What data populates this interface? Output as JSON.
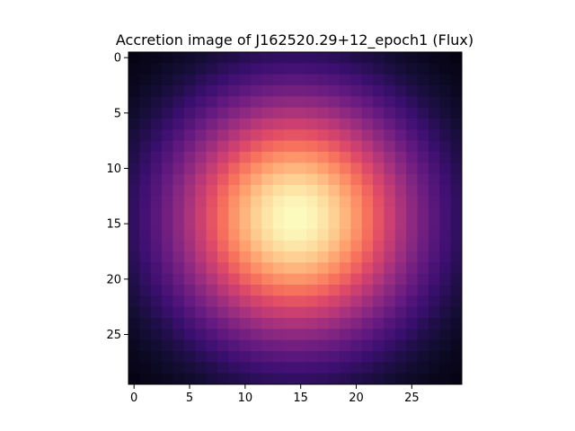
{
  "chart_data": {
    "type": "heatmap",
    "title": "Accretion image of J162520.29+12_epoch1 (Flux)",
    "xlabel": "",
    "ylabel": "",
    "shape": [
      30,
      30
    ],
    "x_range": [
      0,
      29
    ],
    "y_range": [
      0,
      29
    ],
    "y_axis_direction": "top-to-bottom",
    "x_ticks": [
      "0",
      "5",
      "10",
      "15",
      "20",
      "25"
    ],
    "y_ticks": [
      "0",
      "5",
      "10",
      "15",
      "20",
      "25"
    ],
    "colormap": "magma",
    "colormap_stops": [
      "#000004",
      "#140e36",
      "#3b0f70",
      "#641a80",
      "#8c2981",
      "#b73779",
      "#de4968",
      "#f7705c",
      "#fe9f6d",
      "#fecf92",
      "#fcfdbf"
    ],
    "peak": {
      "x": 14.5,
      "y": 14.5,
      "value": 1.0
    },
    "profile": "gaussian",
    "sigma": 7.8,
    "value_range": [
      0,
      1
    ],
    "grid": false,
    "legend": "none"
  }
}
